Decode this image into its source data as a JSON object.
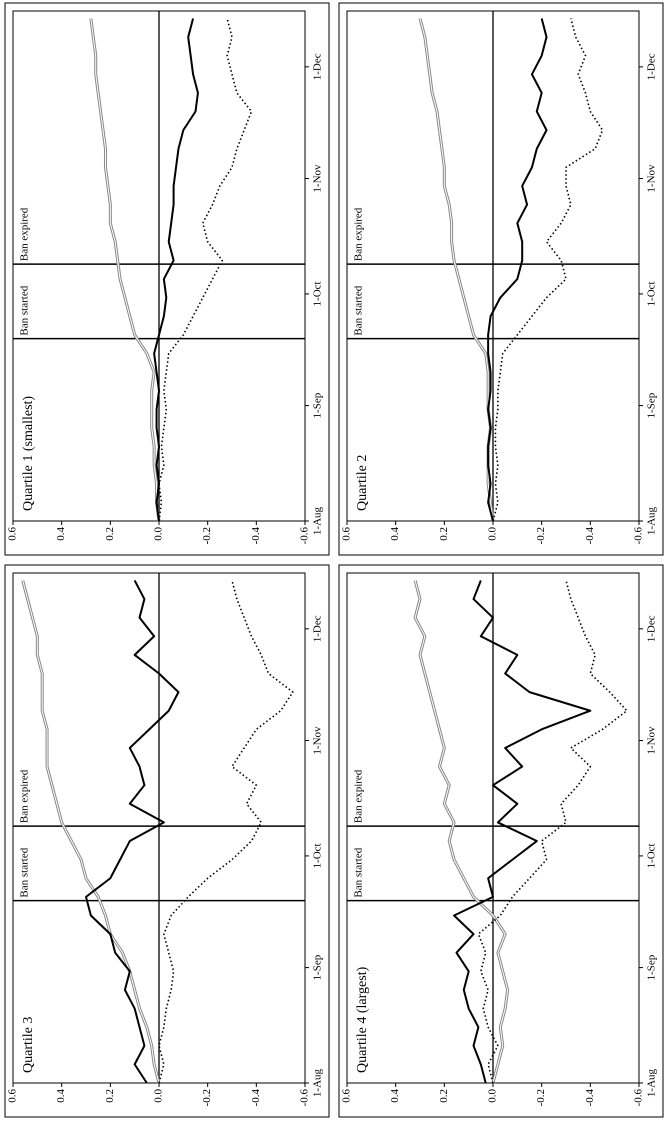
{
  "chart_data": [
    {
      "type": "line",
      "title": "Quartile 1 (smallest)",
      "x": [
        0,
        5,
        10,
        15,
        20,
        25,
        30,
        35,
        40,
        45,
        50,
        55,
        60,
        65,
        70,
        75,
        80,
        85,
        90,
        95,
        100,
        105,
        110,
        115,
        120,
        125,
        130,
        135
      ],
      "xlim": [
        0,
        137
      ],
      "xticks": [
        {
          "value": 0,
          "label": "1-Aug"
        },
        {
          "value": 31,
          "label": "1-Sep"
        },
        {
          "value": 61,
          "label": "1-Oct"
        },
        {
          "value": 92,
          "label": "1-Nov"
        },
        {
          "value": 122,
          "label": "1-Dec"
        }
      ],
      "ylim": [
        -0.6,
        0.6
      ],
      "yticks": [
        0.6,
        0.4,
        0.2,
        {
          "value": 0,
          "label": "0.0"
        },
        -0.2,
        -0.4,
        -0.6
      ],
      "annotations": [
        {
          "x": 49,
          "label": "Ban started"
        },
        {
          "x": 69,
          "label": "Ban expired"
        }
      ],
      "series": [
        {
          "color": "#888888",
          "style": "double",
          "values": [
            0,
            0.01,
            0.01,
            0.02,
            0.02,
            0.03,
            0.03,
            0.03,
            0.02,
            0.05,
            0.1,
            0.12,
            0.14,
            0.16,
            0.17,
            0.18,
            0.2,
            0.2,
            0.21,
            0.22,
            0.22,
            0.23,
            0.24,
            0.25,
            0.26,
            0.26,
            0.27,
            0.28
          ]
        },
        {
          "color": "#000000",
          "style": "solid",
          "values": [
            0,
            0.01,
            0,
            0.01,
            0,
            0.01,
            0.01,
            0,
            0.01,
            0.02,
            0,
            -0.02,
            -0.03,
            -0.02,
            -0.06,
            -0.04,
            -0.05,
            -0.06,
            -0.06,
            -0.07,
            -0.08,
            -0.1,
            -0.15,
            -0.16,
            -0.14,
            -0.13,
            -0.12,
            -0.14
          ]
        },
        {
          "color": "#000000",
          "style": "dotted",
          "values": [
            0,
            -0.01,
            0,
            -0.02,
            -0.01,
            -0.02,
            -0.03,
            -0.02,
            -0.03,
            -0.04,
            -0.1,
            -0.14,
            -0.18,
            -0.22,
            -0.26,
            -0.2,
            -0.18,
            -0.22,
            -0.25,
            -0.3,
            -0.32,
            -0.35,
            -0.38,
            -0.32,
            -0.3,
            -0.28,
            -0.3,
            -0.28
          ]
        }
      ]
    },
    {
      "type": "line",
      "title": "Quartile 2",
      "x": [
        0,
        5,
        10,
        15,
        20,
        25,
        30,
        35,
        40,
        45,
        50,
        55,
        60,
        65,
        70,
        75,
        80,
        85,
        90,
        95,
        100,
        105,
        110,
        115,
        120,
        125,
        130,
        135
      ],
      "xlim": [
        0,
        137
      ],
      "xticks": [
        {
          "value": 0,
          "label": "1-Aug"
        },
        {
          "value": 31,
          "label": "1-Sep"
        },
        {
          "value": 61,
          "label": "1-Oct"
        },
        {
          "value": 92,
          "label": "1-Nov"
        },
        {
          "value": 122,
          "label": "1-Dec"
        }
      ],
      "ylim": [
        -0.6,
        0.6
      ],
      "yticks": [
        0.6,
        0.4,
        0.2,
        {
          "value": 0,
          "label": "0.0"
        },
        -0.2,
        -0.4,
        -0.6
      ],
      "annotations": [
        {
          "x": 49,
          "label": "Ban started"
        },
        {
          "x": 69,
          "label": "Ban expired"
        }
      ],
      "series": [
        {
          "color": "#888888",
          "style": "double",
          "values": [
            0,
            0.01,
            0.02,
            0.02,
            0.02,
            0.01,
            0.02,
            0.02,
            0.02,
            0.03,
            0.08,
            0.1,
            0.12,
            0.14,
            0.16,
            0.17,
            0.17,
            0.18,
            0.2,
            0.2,
            0.21,
            0.22,
            0.23,
            0.25,
            0.26,
            0.27,
            0.28,
            0.3
          ]
        },
        {
          "color": "#000000",
          "style": "solid",
          "values": [
            0,
            0.02,
            0.01,
            0.02,
            0.02,
            0.01,
            0.02,
            0.01,
            0.01,
            0.02,
            0.02,
            0.01,
            -0.03,
            -0.1,
            -0.12,
            -0.12,
            -0.1,
            -0.14,
            -0.12,
            -0.16,
            -0.18,
            -0.22,
            -0.18,
            -0.2,
            -0.16,
            -0.2,
            -0.22,
            -0.2
          ]
        },
        {
          "color": "#000000",
          "style": "dotted",
          "values": [
            0,
            -0.02,
            -0.01,
            -0.02,
            -0.01,
            -0.01,
            -0.02,
            -0.02,
            -0.03,
            -0.04,
            -0.1,
            -0.16,
            -0.22,
            -0.3,
            -0.28,
            -0.22,
            -0.28,
            -0.32,
            -0.3,
            -0.3,
            -0.42,
            -0.45,
            -0.4,
            -0.38,
            -0.35,
            -0.38,
            -0.34,
            -0.32
          ]
        }
      ]
    },
    {
      "type": "line",
      "title": "Quartile 3",
      "x": [
        0,
        5,
        10,
        15,
        20,
        25,
        30,
        35,
        40,
        45,
        50,
        55,
        60,
        65,
        70,
        75,
        80,
        85,
        90,
        95,
        100,
        105,
        110,
        115,
        120,
        125,
        130,
        135
      ],
      "xlim": [
        0,
        137
      ],
      "xticks": [
        {
          "value": 0,
          "label": "1-Aug"
        },
        {
          "value": 31,
          "label": "1-Sep"
        },
        {
          "value": 61,
          "label": "1-Oct"
        },
        {
          "value": 92,
          "label": "1-Nov"
        },
        {
          "value": 122,
          "label": "1-Dec"
        }
      ],
      "ylim": [
        -0.6,
        0.6
      ],
      "yticks": [
        0.6,
        0.4,
        0.2,
        {
          "value": 0,
          "label": "0.0"
        },
        -0.2,
        -0.4,
        -0.6
      ],
      "annotations": [
        {
          "x": 49,
          "label": "Ban started"
        },
        {
          "x": 69,
          "label": "Ban expired"
        }
      ],
      "series": [
        {
          "color": "#888888",
          "style": "double",
          "values": [
            0,
            0.02,
            0.03,
            0.05,
            0.08,
            0.1,
            0.12,
            0.15,
            0.2,
            0.22,
            0.25,
            0.3,
            0.32,
            0.36,
            0.4,
            0.42,
            0.44,
            0.46,
            0.46,
            0.46,
            0.48,
            0.48,
            0.48,
            0.5,
            0.5,
            0.52,
            0.54,
            0.56
          ]
        },
        {
          "color": "#000000",
          "style": "solid",
          "values": [
            0.05,
            0.1,
            0.06,
            0.08,
            0.1,
            0.14,
            0.12,
            0.18,
            0.2,
            0.28,
            0.3,
            0.2,
            0.16,
            0.12,
            -0.02,
            0.12,
            0.06,
            0.08,
            0.12,
            0.04,
            -0.04,
            -0.08,
            0,
            0.1,
            0.02,
            0.08,
            0.06,
            0.1
          ]
        },
        {
          "color": "#000000",
          "style": "dotted",
          "values": [
            0,
            -0.02,
            0,
            -0.02,
            -0.03,
            -0.05,
            -0.06,
            -0.04,
            -0.02,
            -0.05,
            -0.12,
            -0.2,
            -0.3,
            -0.38,
            -0.42,
            -0.36,
            -0.4,
            -0.3,
            -0.35,
            -0.4,
            -0.5,
            -0.55,
            -0.45,
            -0.42,
            -0.38,
            -0.35,
            -0.32,
            -0.3
          ]
        }
      ]
    },
    {
      "type": "line",
      "title": "Quartile 4 (largest)",
      "x": [
        0,
        5,
        10,
        15,
        20,
        25,
        30,
        35,
        40,
        45,
        50,
        55,
        60,
        65,
        70,
        75,
        80,
        85,
        90,
        95,
        100,
        105,
        110,
        115,
        120,
        125,
        130,
        135
      ],
      "xlim": [
        0,
        137
      ],
      "xticks": [
        {
          "value": 0,
          "label": "1-Aug"
        },
        {
          "value": 31,
          "label": "1-Sep"
        },
        {
          "value": 61,
          "label": "1-Oct"
        },
        {
          "value": 92,
          "label": "1-Nov"
        },
        {
          "value": 122,
          "label": "1-Dec"
        }
      ],
      "ylim": [
        -0.6,
        0.6
      ],
      "yticks": [
        0.6,
        0.4,
        0.2,
        {
          "value": 0,
          "label": "0.0"
        },
        -0.2,
        -0.4,
        -0.6
      ],
      "annotations": [
        {
          "x": 49,
          "label": "Ban started"
        },
        {
          "x": 69,
          "label": "Ban expired"
        }
      ],
      "series": [
        {
          "color": "#888888",
          "style": "double",
          "values": [
            0,
            -0.02,
            -0.04,
            -0.03,
            -0.05,
            -0.06,
            -0.04,
            -0.02,
            -0.05,
            0,
            0.08,
            0.12,
            0.16,
            0.18,
            0.16,
            0.2,
            0.18,
            0.22,
            0.2,
            0.22,
            0.24,
            0.26,
            0.28,
            0.3,
            0.28,
            0.32,
            0.3,
            0.32
          ]
        },
        {
          "color": "#000000",
          "style": "solid",
          "values": [
            0.03,
            0.05,
            0.08,
            0.06,
            0.1,
            0.12,
            0.1,
            0.15,
            0.08,
            0.16,
            0,
            0.02,
            -0.08,
            -0.18,
            -0.02,
            -0.1,
            0,
            -0.12,
            -0.05,
            -0.2,
            -0.4,
            -0.15,
            -0.05,
            -0.1,
            0.05,
            0,
            0.08,
            0.05
          ]
        },
        {
          "color": "#000000",
          "style": "dotted",
          "values": [
            0,
            0.02,
            -0.02,
            0.02,
            0.04,
            0.02,
            0.05,
            0.03,
            0.06,
            -0.03,
            -0.08,
            -0.15,
            -0.22,
            -0.2,
            -0.3,
            -0.28,
            -0.35,
            -0.4,
            -0.32,
            -0.45,
            -0.55,
            -0.48,
            -0.4,
            -0.42,
            -0.38,
            -0.35,
            -0.32,
            -0.3
          ]
        }
      ]
    }
  ]
}
